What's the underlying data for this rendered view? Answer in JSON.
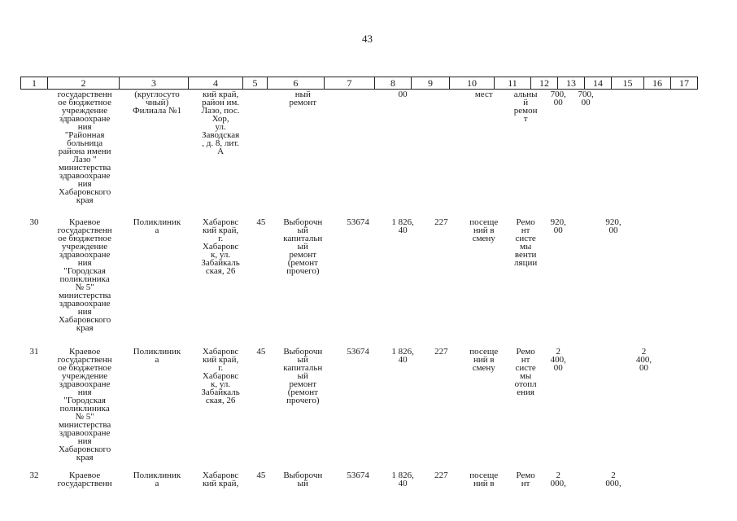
{
  "page_number": "43",
  "header": [
    "1",
    "2",
    "3",
    "4",
    "5",
    "6",
    "7",
    "8",
    "9",
    "10",
    "11",
    "12",
    "13",
    "14",
    "15",
    "16",
    "17"
  ],
  "rows": [
    [
      "",
      "государственн\nое бюджетное\nучреждение\nздравоохране\nния\n\"Районная\nбольница\nрайона имени\nЛазо \"\nминистерства\nздравоохране\nния\nХабаровского\nкрая",
      "(круглосуто\nчный)\nФилиала №1",
      "кий край,\nрайон им.\nЛазо, пос.\nХор,\nул.\nЗаводская\n, д. 8, лит.\nА",
      "",
      "ный\nремонт",
      "",
      "00",
      "",
      "мест",
      "альны\nй\nремон\nт",
      "700,\n00",
      "700,\n00",
      "",
      "",
      "",
      ""
    ],
    [
      "30",
      "Краевое\nгосударственн\nое бюджетное\nучреждение\nздравоохране\nния\n\"Городская\nполиклиника\n№ 5\"\nминистерства\nздравоохране\nния\nХабаровского\nкрая",
      "Поликлиник\nа",
      "Хабаровс\nкий край,\nг.\nХабаровс\nк, ул.\nЗабайкаль\nская, 26",
      "45",
      "Выборочн\nый\nкапитальн\nый\nремонт\n(ремонт\nпрочего)",
      "53674",
      "1 826,\n40",
      "227",
      "посеще\nний в\nсмену",
      "Ремо\nнт\nсисте\nмы\nвенти\nляции",
      "920,\n00",
      "",
      "920,\n00",
      "",
      "",
      ""
    ],
    [
      "31",
      "Краевое\nгосударственн\nое бюджетное\nучреждение\nздравоохране\nния\n\"Городская\nполиклиника\n№ 5\"\nминистерства\nздравоохране\nния\nХабаровского\nкрая",
      "Поликлиник\nа",
      "Хабаровс\nкий край,\nг.\nХабаровс\nк, ул.\nЗабайкаль\nская, 26",
      "45",
      "Выборочн\nый\nкапитальн\nый\nремонт\n(ремонт\nпрочего)",
      "53674",
      "1 826,\n40",
      "227",
      "посеще\nний в\nсмену",
      "Ремо\nнт\nсисте\nмы\nотопл\nения",
      "2\n400,\n00",
      "",
      "",
      "2\n400,\n00",
      "",
      ""
    ],
    [
      "32",
      "Краевое\nгосударственн",
      "Поликлиник\nа",
      "Хабаровс\nкий край,",
      "45",
      "Выборочн\nый",
      "53674",
      "1 826,\n40",
      "227",
      "посеще\nний в",
      "Ремо\nнт",
      "2\n000,",
      "",
      "2\n000,",
      "",
      "",
      ""
    ]
  ]
}
